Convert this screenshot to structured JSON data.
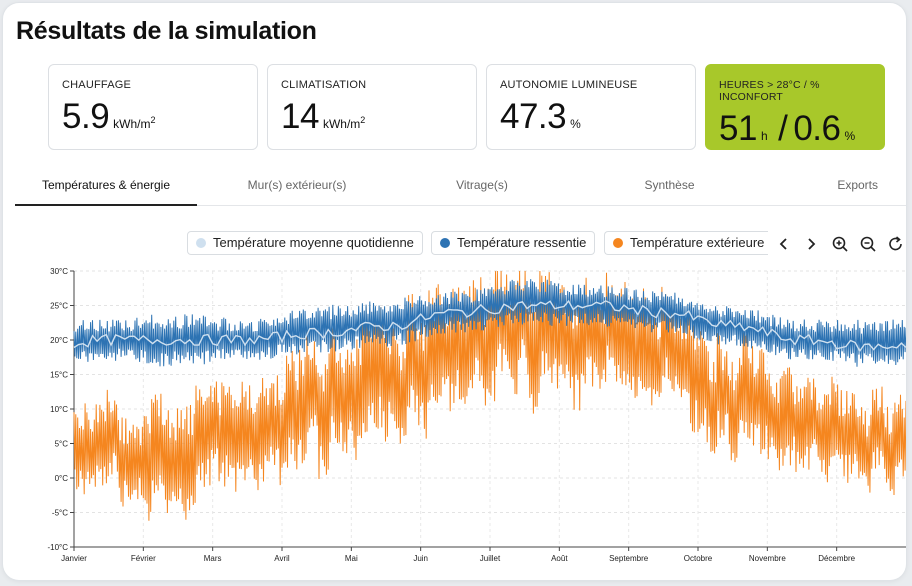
{
  "page": {
    "title": "Résultats de la simulation"
  },
  "cards": [
    {
      "label": "CHAUFFAGE",
      "value": "5.9",
      "unit": "kWh/m",
      "sup": "2"
    },
    {
      "label": "CLIMATISATION",
      "value": "14",
      "unit": "kWh/m",
      "sup": "2"
    },
    {
      "label": "AUTONOMIE LUMINEUSE",
      "value": "47.3",
      "unit": "%"
    },
    {
      "label": "HEURES > 28°C / % INCONFORT",
      "value1": "51",
      "unit1": "h",
      "sep": "/",
      "value2": "0.6",
      "unit2": "%"
    }
  ],
  "tabs": [
    "Températures & énergie",
    "Mur(s) extérieur(s)",
    "Vitrage(s)",
    "Synthèse",
    "Exports"
  ],
  "active_tab": "Températures & énergie",
  "colors": {
    "accent": "#a8c82a",
    "ressentie": "#2d73b3",
    "exterieure": "#f5861f",
    "moyenne": "#cfe0ef"
  },
  "chart_data": {
    "type": "line",
    "legend": [
      {
        "name": "Température moyenne quotidienne",
        "color": "#cfe0ef"
      },
      {
        "name": "Température ressentie",
        "color": "#2d73b3"
      },
      {
        "name": "Température extérieure",
        "color": "#f5861f"
      }
    ],
    "y_ticks": [
      "30°C",
      "25°C",
      "20°C",
      "15°C",
      "10°C",
      "5°C",
      "0°C",
      "-5°C",
      "-10°C"
    ],
    "ylim": [
      -10,
      30
    ],
    "x_labels": [
      "Janvier",
      "Février",
      "Mars",
      "Avril",
      "Mai",
      "Juin",
      "Juillet",
      "Août",
      "Septembre",
      "Octobre",
      "Novembre",
      "Décembre"
    ],
    "series": [
      {
        "name": "Température ressentie",
        "monthly_min": [
          17,
          16,
          17,
          18,
          19,
          21,
          22,
          22,
          21,
          19,
          17,
          16
        ],
        "monthly_max": [
          23,
          24,
          23,
          25,
          26,
          27,
          29,
          28,
          27,
          25,
          23,
          23
        ]
      },
      {
        "name": "Température moyenne quotidienne",
        "monthly_mean": [
          20,
          20,
          20,
          21,
          22,
          24,
          25,
          25,
          24,
          22,
          20,
          19
        ]
      },
      {
        "name": "Température extérieure",
        "monthly_min": [
          -3,
          -5,
          -1,
          2,
          5,
          9,
          12,
          12,
          10,
          3,
          0,
          -1
        ],
        "monthly_max": [
          11,
          12,
          15,
          20,
          24,
          27,
          30,
          29,
          27,
          19,
          15,
          12
        ]
      }
    ]
  },
  "toolbar": {
    "prev": "‹",
    "next": "›"
  }
}
